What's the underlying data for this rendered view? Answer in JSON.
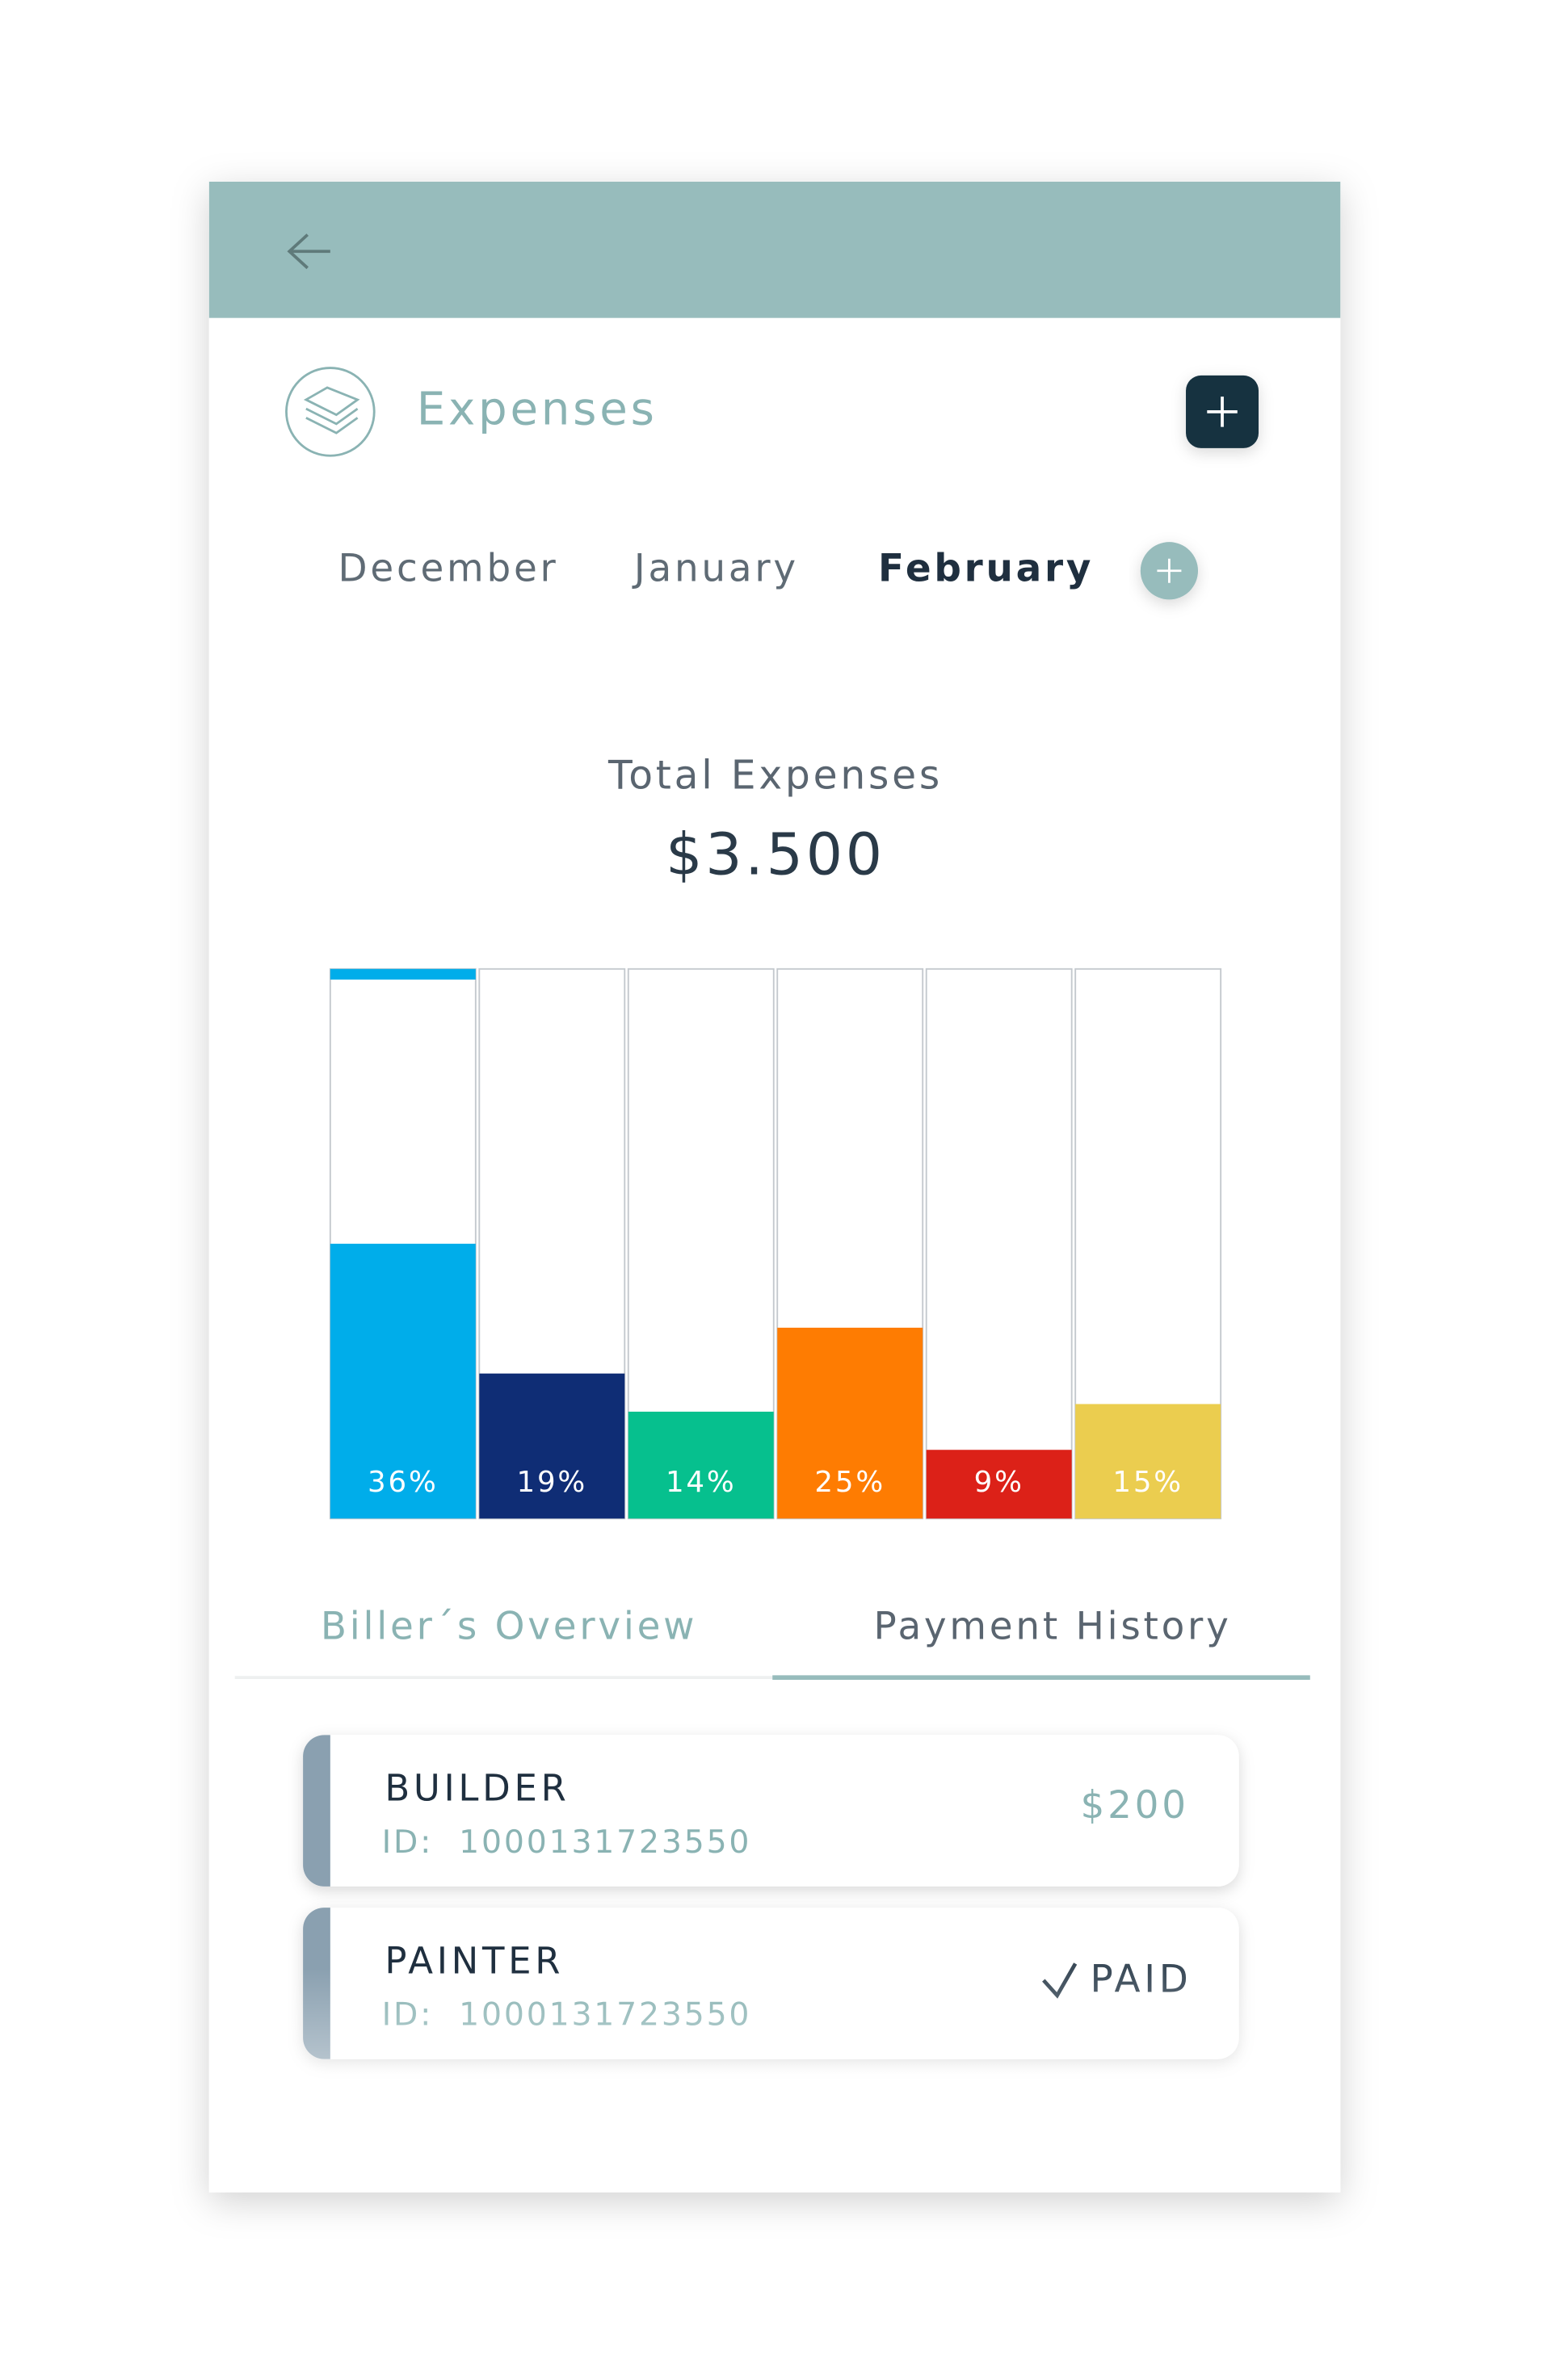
{
  "header": {
    "title": "Expenses"
  },
  "months": {
    "items": [
      "December",
      "January",
      "February"
    ],
    "selected": 2
  },
  "total": {
    "label": "Total Expenses",
    "amount": "$3.500"
  },
  "chart_data": {
    "type": "bar",
    "categories": [
      null,
      null,
      null,
      null,
      null,
      null
    ],
    "values": [
      36,
      19,
      14,
      25,
      9,
      15
    ],
    "value_labels": [
      "36%",
      "19%",
      "14%",
      "25%",
      "9%",
      "15%"
    ],
    "colors": [
      "#00adea",
      "#0f2d75",
      "#06c08e",
      "#fe7c02",
      "#dc2118",
      "#ebcd4f"
    ]
  },
  "tabs": {
    "items": [
      "Biller´s Overview",
      "Payment History"
    ],
    "selected": 1
  },
  "payments": [
    {
      "name": "BUILDER",
      "id_label": "ID:",
      "id": "1000131723550",
      "amount": "$200"
    },
    {
      "name": "PAINTER",
      "id_label": "ID:",
      "id": "1000131723550",
      "status": "PAID"
    }
  ]
}
